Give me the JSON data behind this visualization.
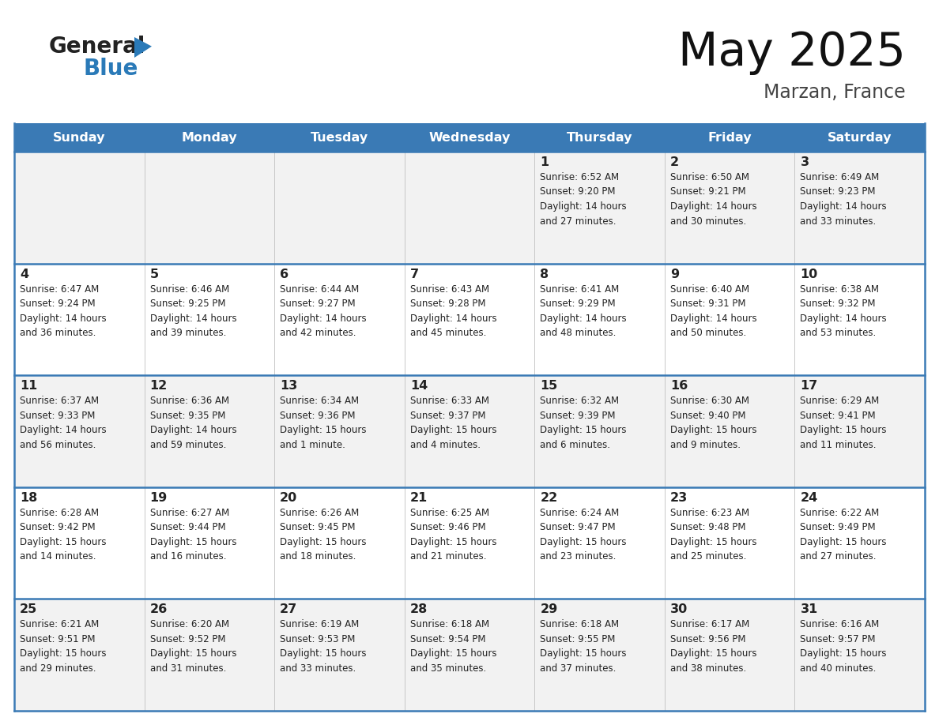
{
  "title": "May 2025",
  "subtitle": "Marzan, France",
  "header_color": "#3a7ab5",
  "header_text_color": "#ffffff",
  "cell_bg_even": "#f2f2f2",
  "cell_bg_odd": "#ffffff",
  "day_names": [
    "Sunday",
    "Monday",
    "Tuesday",
    "Wednesday",
    "Thursday",
    "Friday",
    "Saturday"
  ],
  "text_color": "#222222",
  "line_color": "#3a7ab5",
  "logo_general_color": "#222222",
  "logo_blue_color": "#2a7ab8",
  "logo_triangle_color": "#2a7ab8",
  "weeks": [
    [
      {
        "day": "",
        "info": ""
      },
      {
        "day": "",
        "info": ""
      },
      {
        "day": "",
        "info": ""
      },
      {
        "day": "",
        "info": ""
      },
      {
        "day": "1",
        "info": "Sunrise: 6:52 AM\nSunset: 9:20 PM\nDaylight: 14 hours\nand 27 minutes."
      },
      {
        "day": "2",
        "info": "Sunrise: 6:50 AM\nSunset: 9:21 PM\nDaylight: 14 hours\nand 30 minutes."
      },
      {
        "day": "3",
        "info": "Sunrise: 6:49 AM\nSunset: 9:23 PM\nDaylight: 14 hours\nand 33 minutes."
      }
    ],
    [
      {
        "day": "4",
        "info": "Sunrise: 6:47 AM\nSunset: 9:24 PM\nDaylight: 14 hours\nand 36 minutes."
      },
      {
        "day": "5",
        "info": "Sunrise: 6:46 AM\nSunset: 9:25 PM\nDaylight: 14 hours\nand 39 minutes."
      },
      {
        "day": "6",
        "info": "Sunrise: 6:44 AM\nSunset: 9:27 PM\nDaylight: 14 hours\nand 42 minutes."
      },
      {
        "day": "7",
        "info": "Sunrise: 6:43 AM\nSunset: 9:28 PM\nDaylight: 14 hours\nand 45 minutes."
      },
      {
        "day": "8",
        "info": "Sunrise: 6:41 AM\nSunset: 9:29 PM\nDaylight: 14 hours\nand 48 minutes."
      },
      {
        "day": "9",
        "info": "Sunrise: 6:40 AM\nSunset: 9:31 PM\nDaylight: 14 hours\nand 50 minutes."
      },
      {
        "day": "10",
        "info": "Sunrise: 6:38 AM\nSunset: 9:32 PM\nDaylight: 14 hours\nand 53 minutes."
      }
    ],
    [
      {
        "day": "11",
        "info": "Sunrise: 6:37 AM\nSunset: 9:33 PM\nDaylight: 14 hours\nand 56 minutes."
      },
      {
        "day": "12",
        "info": "Sunrise: 6:36 AM\nSunset: 9:35 PM\nDaylight: 14 hours\nand 59 minutes."
      },
      {
        "day": "13",
        "info": "Sunrise: 6:34 AM\nSunset: 9:36 PM\nDaylight: 15 hours\nand 1 minute."
      },
      {
        "day": "14",
        "info": "Sunrise: 6:33 AM\nSunset: 9:37 PM\nDaylight: 15 hours\nand 4 minutes."
      },
      {
        "day": "15",
        "info": "Sunrise: 6:32 AM\nSunset: 9:39 PM\nDaylight: 15 hours\nand 6 minutes."
      },
      {
        "day": "16",
        "info": "Sunrise: 6:30 AM\nSunset: 9:40 PM\nDaylight: 15 hours\nand 9 minutes."
      },
      {
        "day": "17",
        "info": "Sunrise: 6:29 AM\nSunset: 9:41 PM\nDaylight: 15 hours\nand 11 minutes."
      }
    ],
    [
      {
        "day": "18",
        "info": "Sunrise: 6:28 AM\nSunset: 9:42 PM\nDaylight: 15 hours\nand 14 minutes."
      },
      {
        "day": "19",
        "info": "Sunrise: 6:27 AM\nSunset: 9:44 PM\nDaylight: 15 hours\nand 16 minutes."
      },
      {
        "day": "20",
        "info": "Sunrise: 6:26 AM\nSunset: 9:45 PM\nDaylight: 15 hours\nand 18 minutes."
      },
      {
        "day": "21",
        "info": "Sunrise: 6:25 AM\nSunset: 9:46 PM\nDaylight: 15 hours\nand 21 minutes."
      },
      {
        "day": "22",
        "info": "Sunrise: 6:24 AM\nSunset: 9:47 PM\nDaylight: 15 hours\nand 23 minutes."
      },
      {
        "day": "23",
        "info": "Sunrise: 6:23 AM\nSunset: 9:48 PM\nDaylight: 15 hours\nand 25 minutes."
      },
      {
        "day": "24",
        "info": "Sunrise: 6:22 AM\nSunset: 9:49 PM\nDaylight: 15 hours\nand 27 minutes."
      }
    ],
    [
      {
        "day": "25",
        "info": "Sunrise: 6:21 AM\nSunset: 9:51 PM\nDaylight: 15 hours\nand 29 minutes."
      },
      {
        "day": "26",
        "info": "Sunrise: 6:20 AM\nSunset: 9:52 PM\nDaylight: 15 hours\nand 31 minutes."
      },
      {
        "day": "27",
        "info": "Sunrise: 6:19 AM\nSunset: 9:53 PM\nDaylight: 15 hours\nand 33 minutes."
      },
      {
        "day": "28",
        "info": "Sunrise: 6:18 AM\nSunset: 9:54 PM\nDaylight: 15 hours\nand 35 minutes."
      },
      {
        "day": "29",
        "info": "Sunrise: 6:18 AM\nSunset: 9:55 PM\nDaylight: 15 hours\nand 37 minutes."
      },
      {
        "day": "30",
        "info": "Sunrise: 6:17 AM\nSunset: 9:56 PM\nDaylight: 15 hours\nand 38 minutes."
      },
      {
        "day": "31",
        "info": "Sunrise: 6:16 AM\nSunset: 9:57 PM\nDaylight: 15 hours\nand 40 minutes."
      }
    ]
  ]
}
